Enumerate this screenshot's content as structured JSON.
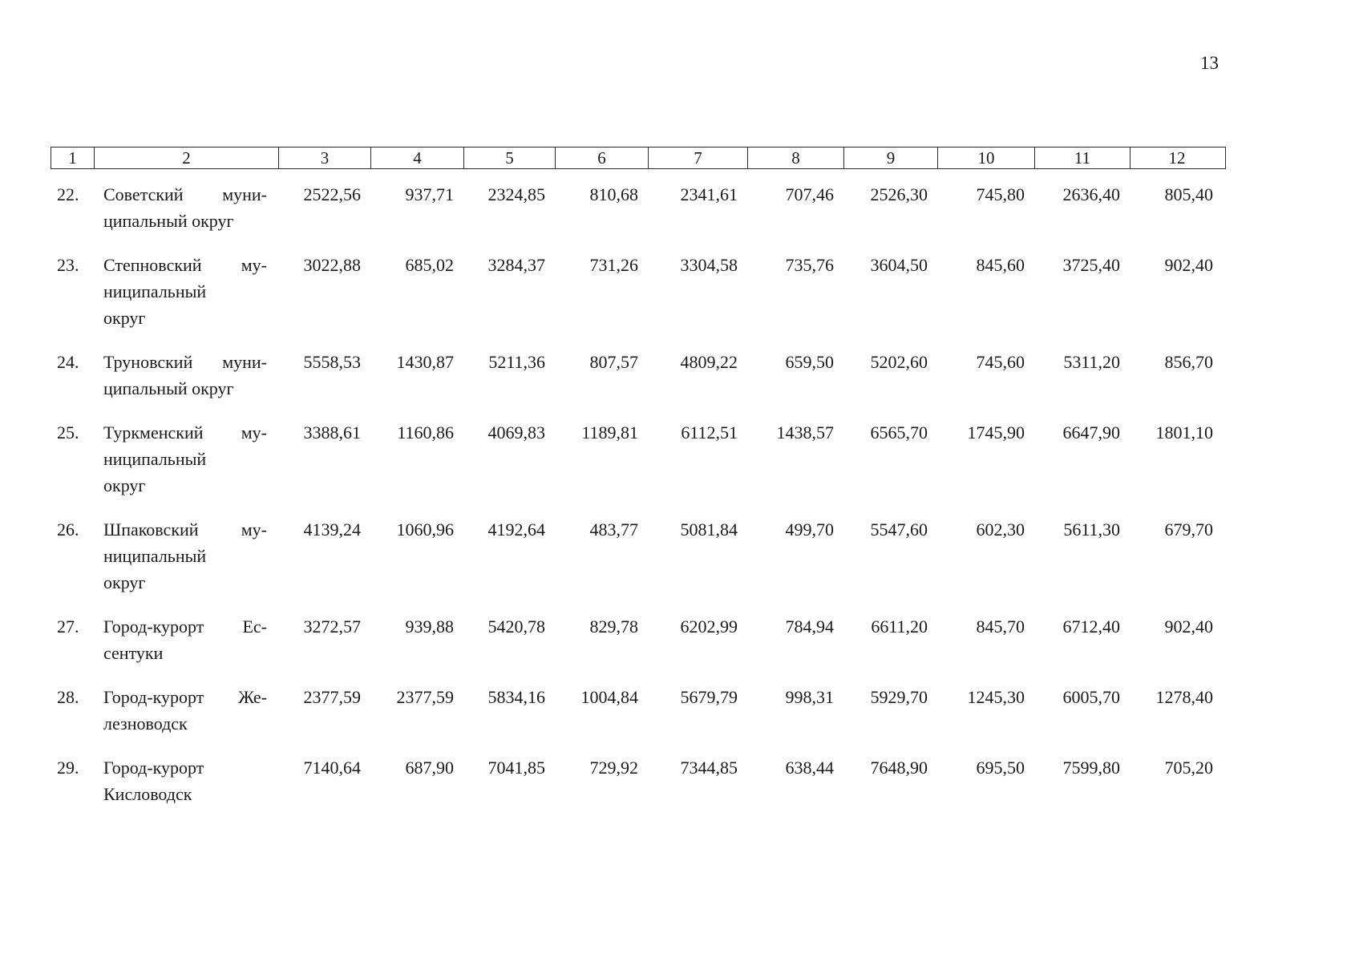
{
  "page": {
    "number": "13"
  },
  "table": {
    "header": [
      "1",
      "2",
      "3",
      "4",
      "5",
      "6",
      "7",
      "8",
      "9",
      "10",
      "11",
      "12"
    ],
    "rows": [
      {
        "num": "22.",
        "name_lines": [
          "Советский муни-",
          "ципальный округ"
        ],
        "values": [
          "2522,56",
          "937,71",
          "2324,85",
          "810,68",
          "2341,61",
          "707,46",
          "2526,30",
          "745,80",
          "2636,40",
          "805,40"
        ]
      },
      {
        "num": "23.",
        "name_lines": [
          "Степновский му-",
          "ниципальный",
          "округ"
        ],
        "values": [
          "3022,88",
          "685,02",
          "3284,37",
          "731,26",
          "3304,58",
          "735,76",
          "3604,50",
          "845,60",
          "3725,40",
          "902,40"
        ]
      },
      {
        "num": "24.",
        "name_lines": [
          "Труновский муни-",
          "ципальный округ"
        ],
        "values": [
          "5558,53",
          "1430,87",
          "5211,36",
          "807,57",
          "4809,22",
          "659,50",
          "5202,60",
          "745,60",
          "5311,20",
          "856,70"
        ]
      },
      {
        "num": "25.",
        "name_lines": [
          "Туркменский му-",
          "ниципальный",
          "округ"
        ],
        "values": [
          "3388,61",
          "1160,86",
          "4069,83",
          "1189,81",
          "6112,51",
          "1438,57",
          "6565,70",
          "1745,90",
          "6647,90",
          "1801,10"
        ]
      },
      {
        "num": "26.",
        "name_lines": [
          "Шпаковский му-",
          "ниципальный",
          "округ"
        ],
        "values": [
          "4139,24",
          "1060,96",
          "4192,64",
          "483,77",
          "5081,84",
          "499,70",
          "5547,60",
          "602,30",
          "5611,30",
          "679,70"
        ]
      },
      {
        "num": "27.",
        "name_lines": [
          "Город-курорт Ес-",
          "сентуки"
        ],
        "values": [
          "3272,57",
          "939,88",
          "5420,78",
          "829,78",
          "6202,99",
          "784,94",
          "6611,20",
          "845,70",
          "6712,40",
          "902,40"
        ]
      },
      {
        "num": "28.",
        "name_lines": [
          "Город-курорт Же-",
          "лезноводск"
        ],
        "values": [
          "2377,59",
          "2377,59",
          "5834,16",
          "1004,84",
          "5679,79",
          "998,31",
          "5929,70",
          "1245,30",
          "6005,70",
          "1278,40"
        ]
      },
      {
        "num": "29.",
        "name_lines": [
          "Город-курорт",
          "Кисловодск"
        ],
        "values": [
          "7140,64",
          "687,90",
          "7041,85",
          "729,92",
          "7344,85",
          "638,44",
          "7648,90",
          "695,50",
          "7599,80",
          "705,20"
        ]
      }
    ]
  }
}
